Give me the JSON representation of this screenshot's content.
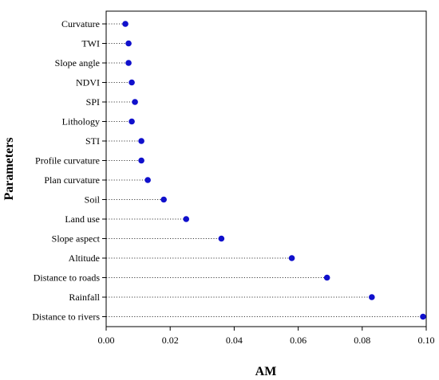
{
  "chart_data": {
    "type": "scatter",
    "orientation": "horizontal",
    "style": "dot-leader lollipop",
    "xlabel": "AM",
    "ylabel": "Parameters",
    "xlim": [
      0.0,
      0.1
    ],
    "xticks": [
      "0.00",
      "0.02",
      "0.04",
      "0.06",
      "0.08",
      "0.10"
    ],
    "categories": [
      "Curvature",
      "TWI",
      "Slope angle",
      "NDVI",
      "SPI",
      "Lithology",
      "STI",
      "Profile curvature",
      "Plan curvature",
      "Soil",
      "Land use",
      "Slope aspect",
      "Altitude",
      "Distance to roads",
      "Rainfall",
      "Distance to rivers"
    ],
    "values": [
      0.006,
      0.007,
      0.007,
      0.008,
      0.009,
      0.008,
      0.011,
      0.011,
      0.013,
      0.018,
      0.025,
      0.036,
      0.058,
      0.069,
      0.083,
      0.099
    ],
    "marker_color": "#1010cc",
    "grid": false
  }
}
